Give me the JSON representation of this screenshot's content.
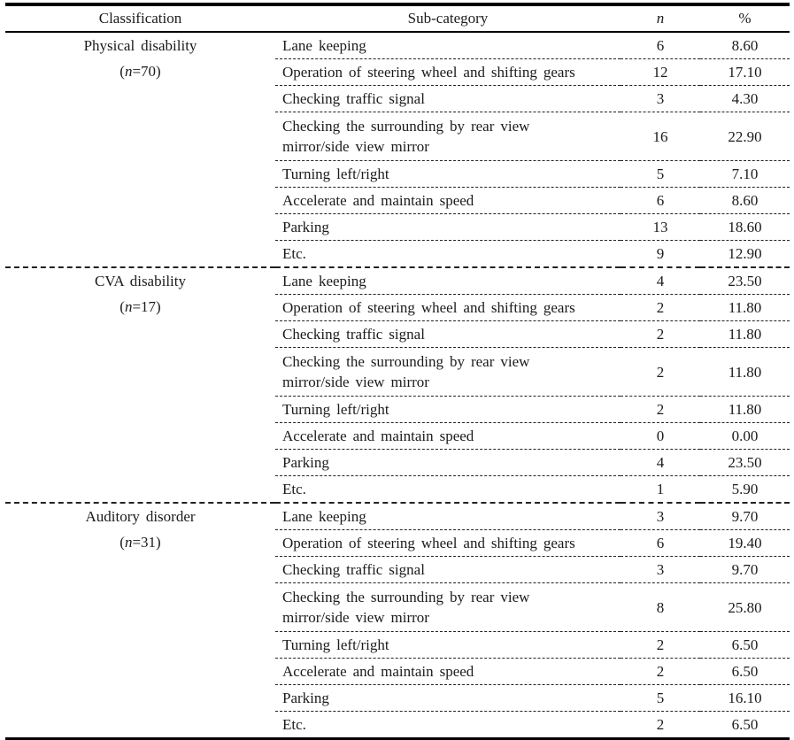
{
  "header": {
    "columns": [
      "Classification",
      "Sub-category",
      "n",
      "%"
    ]
  },
  "table": {
    "groups": [
      {
        "classification": "Physical disability",
        "count_label": "(n=70)",
        "rows": [
          {
            "sub_category": "Lane keeping",
            "n": "6",
            "pct": "8.60"
          },
          {
            "sub_category": "Operation of steering wheel and shifting gears",
            "n": "12",
            "pct": "17.10"
          },
          {
            "sub_category": "Checking traffic signal",
            "n": "3",
            "pct": "4.30"
          },
          {
            "sub_category": "Checking the surrounding by rear view\nmirror/side view mirror",
            "n": "16",
            "pct": "22.90"
          },
          {
            "sub_category": "Turning left/right",
            "n": "5",
            "pct": "7.10"
          },
          {
            "sub_category": "Accelerate and maintain speed",
            "n": "6",
            "pct": "8.60"
          },
          {
            "sub_category": "Parking",
            "n": "13",
            "pct": "18.60"
          },
          {
            "sub_category": "Etc.",
            "n": "9",
            "pct": "12.90"
          }
        ]
      },
      {
        "classification": "CVA disability",
        "count_label": "(n=17)",
        "rows": [
          {
            "sub_category": "Lane keeping",
            "n": "4",
            "pct": "23.50"
          },
          {
            "sub_category": "Operation of steering wheel and shifting gears",
            "n": "2",
            "pct": "11.80"
          },
          {
            "sub_category": "Checking traffic signal",
            "n": "2",
            "pct": "11.80"
          },
          {
            "sub_category": "Checking the surrounding by rear view\nmirror/side view mirror",
            "n": "2",
            "pct": "11.80"
          },
          {
            "sub_category": "Turning left/right",
            "n": "2",
            "pct": "11.80"
          },
          {
            "sub_category": "Accelerate and maintain speed",
            "n": "0",
            "pct": "0.00"
          },
          {
            "sub_category": "Parking",
            "n": "4",
            "pct": "23.50"
          },
          {
            "sub_category": "Etc.",
            "n": "1",
            "pct": "5.90"
          }
        ]
      },
      {
        "classification": "Auditory disorder",
        "count_label": "(n=31)",
        "rows": [
          {
            "sub_category": "Lane keeping",
            "n": "3",
            "pct": "9.70"
          },
          {
            "sub_category": "Operation of steering wheel and shifting gears",
            "n": "6",
            "pct": "19.40"
          },
          {
            "sub_category": "Checking traffic signal",
            "n": "3",
            "pct": "9.70"
          },
          {
            "sub_category": "Checking the surrounding by rear view\nmirror/side view mirror",
            "n": "8",
            "pct": "25.80"
          },
          {
            "sub_category": "Turning left/right",
            "n": "2",
            "pct": "6.50"
          },
          {
            "sub_category": "Accelerate and maintain speed",
            "n": "2",
            "pct": "6.50"
          },
          {
            "sub_category": "Parking",
            "n": "5",
            "pct": "16.10"
          },
          {
            "sub_category": "Etc.",
            "n": "2",
            "pct": "6.50"
          }
        ]
      }
    ]
  },
  "colors": {
    "text": "#1b1b1b",
    "rule_solid": "#000000",
    "rule_dashed": "#222222",
    "background": "#ffffff"
  }
}
